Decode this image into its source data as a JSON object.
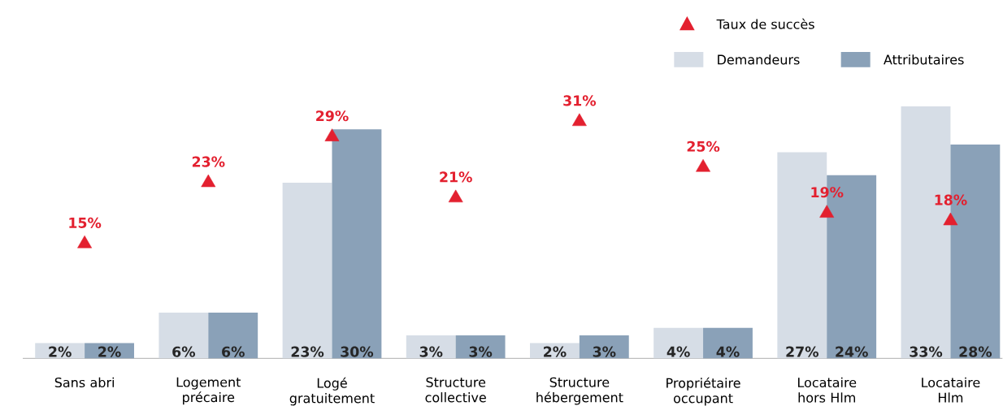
{
  "chart_data": {
    "type": "bar",
    "categories": [
      "Sans abri",
      "Logement précaire",
      "Logé gratuitement",
      "Structure collective",
      "Structure hébergement",
      "Propriétaire occupant",
      "Locataire hors Hlm",
      "Locataire Hlm"
    ],
    "series": [
      {
        "name": "Demandeurs",
        "color": "#d6dde6",
        "values": [
          2,
          6,
          23,
          3,
          2,
          4,
          27,
          33
        ],
        "value_labels": [
          "2%",
          "6%",
          "23%",
          "3%",
          "2%",
          "4%",
          "27%",
          "33%"
        ]
      },
      {
        "name": "Attributaires",
        "color": "#8aa1b8",
        "values": [
          2,
          6,
          30,
          3,
          3,
          4,
          24,
          28
        ],
        "value_labels": [
          "2%",
          "6%",
          "30%",
          "3%",
          "3%",
          "4%",
          "24%",
          "28%"
        ]
      },
      {
        "name": "Taux de succès",
        "type": "scatter",
        "marker": "triangle",
        "color": "#e3202f",
        "values": [
          15,
          23,
          29,
          21,
          31,
          25,
          19,
          18
        ],
        "value_labels": [
          "15%",
          "23%",
          "29%",
          "21%",
          "31%",
          "25%",
          "19%",
          "18%"
        ]
      }
    ],
    "legend": "top right"
  }
}
